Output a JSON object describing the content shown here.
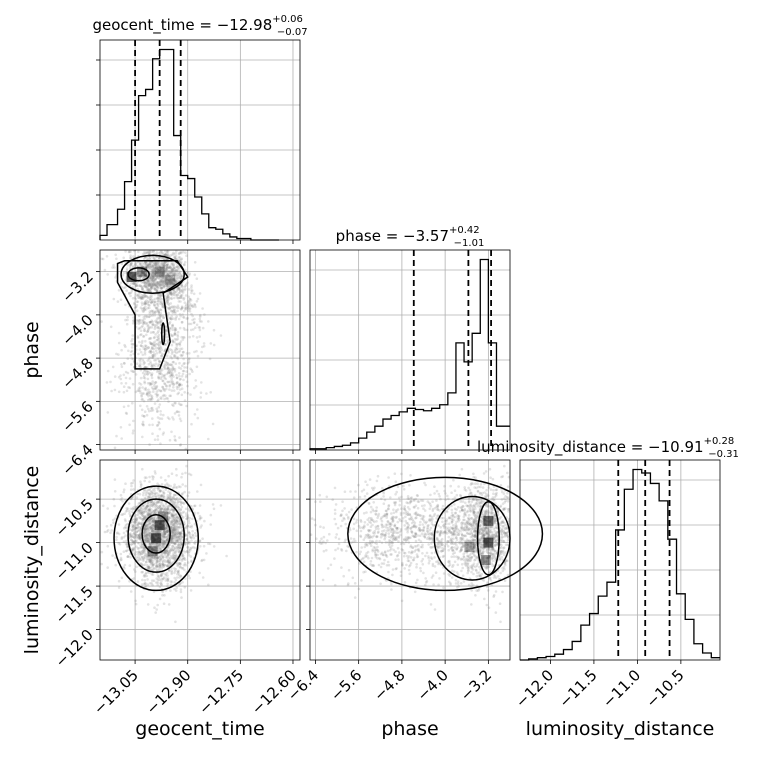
{
  "chart_data": {
    "type": "corner",
    "parameters": [
      "geocent_time",
      "phase",
      "luminosity_distance"
    ],
    "titles": [
      {
        "param": "geocent_time",
        "label": "geocent_time = ",
        "median": "−12.98",
        "plus": "+0.06",
        "minus": "−0.07"
      },
      {
        "param": "phase",
        "label": "phase = ",
        "median": "−3.57",
        "plus": "+0.42",
        "minus": "−1.01"
      },
      {
        "param": "luminosity_distance",
        "label": "luminosity_distance = ",
        "median": "−10.91",
        "plus": "+0.28",
        "minus": "−0.31"
      }
    ],
    "axis_labels": [
      "geocent_time",
      "phase",
      "luminosity_distance"
    ],
    "ranges": {
      "geocent_time": [
        -13.15,
        -12.58
      ],
      "phase": [
        -6.5,
        -2.8
      ],
      "luminosity_distance": [
        -12.35,
        -10.05
      ]
    },
    "ticks": {
      "geocent_time": {
        "values": [
          -13.05,
          -12.9,
          -12.75,
          -12.6
        ],
        "labels": [
          "−13.05",
          "−12.90",
          "−12.75",
          "−12.60"
        ]
      },
      "phase": {
        "values": [
          -6.4,
          -5.6,
          -4.8,
          -4.0,
          -3.2
        ],
        "labels": [
          "−6.4",
          "−5.6",
          "−4.8",
          "−4.0",
          "−3.2"
        ]
      },
      "luminosity_distance": {
        "values": [
          -12.0,
          -11.5,
          -11.0,
          -10.5
        ],
        "labels": [
          "−12.0",
          "−11.5",
          "−11.0",
          "−10.5"
        ]
      }
    },
    "quantiles": {
      "geocent_time": [
        -13.05,
        -12.98,
        -12.92
      ],
      "phase": [
        -4.58,
        -3.57,
        -3.15
      ],
      "luminosity_distance": [
        -11.22,
        -10.91,
        -10.63
      ]
    },
    "histograms": {
      "geocent_time": {
        "bins": [
          -13.15,
          -13.13,
          -13.1,
          -13.08,
          -13.06,
          -13.04,
          -13.02,
          -13.0,
          -12.98,
          -12.96,
          -12.94,
          -12.92,
          -12.9,
          -12.88,
          -12.86,
          -12.84,
          -12.82,
          -12.8,
          -12.78,
          -12.76,
          -12.74,
          -12.72,
          -12.7,
          -12.68,
          -12.66,
          -12.64
        ],
        "counts": [
          3,
          10,
          20,
          38,
          65,
          94,
          98,
          118,
          124,
          124,
          68,
          42,
          40,
          28,
          17,
          8,
          7,
          4,
          2,
          1,
          1,
          0,
          0,
          0,
          0
        ]
      },
      "phase": {
        "bins": [
          -6.5,
          -6.35,
          -6.2,
          -6.05,
          -5.9,
          -5.75,
          -5.6,
          -5.45,
          -5.3,
          -5.15,
          -5.0,
          -4.85,
          -4.7,
          -4.55,
          -4.4,
          -4.25,
          -4.1,
          -3.95,
          -3.8,
          -3.65,
          -3.5,
          -3.35,
          -3.2,
          -3.05,
          -2.9,
          -2.8
        ],
        "counts": [
          1,
          1,
          2,
          3,
          4,
          6,
          10,
          15,
          20,
          26,
          29,
          32,
          35,
          34,
          33,
          35,
          38,
          48,
          90,
          74,
          98,
          160,
          90,
          20,
          20
        ]
      },
      "luminosity_distance": {
        "bins": [
          -12.35,
          -12.25,
          -12.15,
          -12.05,
          -11.95,
          -11.85,
          -11.75,
          -11.65,
          -11.55,
          -11.45,
          -11.35,
          -11.25,
          -11.15,
          -11.05,
          -10.95,
          -10.85,
          -10.75,
          -10.65,
          -10.55,
          -10.45,
          -10.35,
          -10.25,
          -10.15,
          -10.05
        ],
        "counts": [
          0,
          1,
          2,
          3,
          5,
          9,
          16,
          30,
          40,
          55,
          67,
          112,
          147,
          164,
          161,
          152,
          137,
          104,
          57,
          35,
          14,
          6,
          2
        ]
      }
    }
  }
}
